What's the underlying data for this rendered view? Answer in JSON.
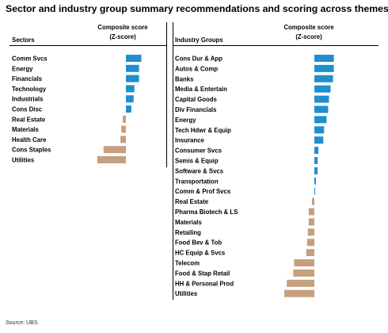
{
  "title": "Sector and industry group summary recommendations and scoring across themes",
  "source": "Source: UBS.",
  "colors": {
    "positive": "#1f8fcf",
    "negative": "#c4a07e"
  },
  "chart_data": [
    {
      "type": "bar",
      "orientation": "horizontal",
      "row_header": "Sectors",
      "value_header_line1": "Composite score",
      "value_header_line2": "(Z-score)",
      "categories": [
        "Comm Svcs",
        "Energy",
        "Financials",
        "Technology",
        "Industrials",
        "Cons Disc",
        "Real Estate",
        "Materials",
        "Health Care",
        "Cons Staples",
        "Utilities"
      ],
      "values": [
        1.0,
        0.85,
        0.85,
        0.55,
        0.5,
        0.35,
        -0.2,
        -0.3,
        -0.35,
        -1.45,
        -1.85
      ]
    },
    {
      "type": "bar",
      "orientation": "horizontal",
      "row_header": "Industry Groups",
      "value_header_line1": "Composite score",
      "value_header_line2": "(Z-score)",
      "categories": [
        "Cons Dur & App",
        "Autos & Comp",
        "Banks",
        "Media & Entertain",
        "Capital Goods",
        "Div Financials",
        "Energy",
        "Tech Hdwr & Equip",
        "Insurance",
        "Consumer Svcs",
        "Semis & Equip",
        "Software & Svcs",
        "Transportation",
        "Comm & Prof Svcs",
        "Real Estate",
        "Pharma Biotech & LS",
        "Materials",
        "Retailing",
        "Food Bev & Tob",
        "HC Equip & Svcs",
        "Telecom",
        "Food & Stap Retail",
        "HH & Personal Prod",
        "Utilities"
      ],
      "values": [
        1.2,
        1.2,
        1.15,
        1.0,
        0.9,
        0.85,
        0.75,
        0.6,
        0.55,
        0.25,
        0.2,
        0.2,
        0.1,
        0.03,
        -0.15,
        -0.35,
        -0.35,
        -0.4,
        -0.45,
        -0.5,
        -1.25,
        -1.3,
        -1.7,
        -1.85
      ]
    }
  ]
}
